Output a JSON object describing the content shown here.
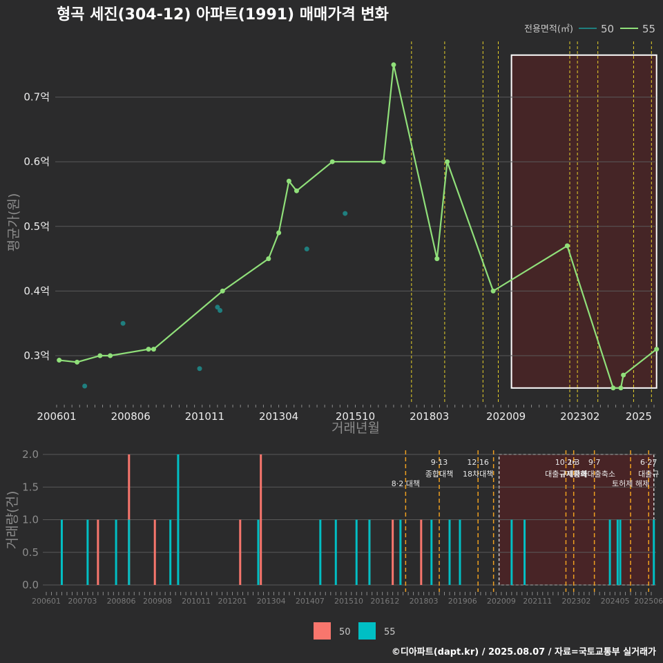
{
  "title": "형곡 세진(304-12) 아파트(1991) 매매가격 변화",
  "caption": "©디아파트(dapt.kr) / 2025.08.07 / 자료=국토교통부 실거래가",
  "colors": {
    "background": "#2b2b2c",
    "series50_top": "#1f7f7f",
    "series55_top": "#90e07a",
    "bar50": "#f8766d",
    "bar55": "#00bfc4",
    "policy_line": "#e8d22a",
    "policy_line_bottom": "#f0a020",
    "highlight_fill": "#4a2426"
  },
  "chart_data": [
    {
      "type": "line",
      "title": "형곡 세진(304-12) 아파트(1991) 매매가격 변화",
      "xlabel": "거래년월",
      "ylabel": "평균가(원)",
      "x_ticks": [
        "200601",
        "200806",
        "201011",
        "201304",
        "201510",
        "201803",
        "202009",
        "202302",
        "2025"
      ],
      "y_ticks": [
        "0.3억",
        "0.4억",
        "0.5억",
        "0.6억",
        "0.7억"
      ],
      "ylim": [
        0.235,
        0.78
      ],
      "legend_title": "전용면적(㎡)",
      "legend_position": "top-right",
      "series": [
        {
          "name": "50",
          "mode": "points",
          "points": [
            [
              "2006-12",
              0.253
            ],
            [
              "2008-03",
              0.35
            ],
            [
              "2010-09",
              0.28
            ],
            [
              "2011-04",
              0.375
            ],
            [
              "2011-05",
              0.37
            ],
            [
              "2014-03",
              0.465
            ],
            [
              "2015-06",
              0.52
            ]
          ]
        },
        {
          "name": "55",
          "mode": "line",
          "points": [
            [
              "2006-02",
              0.293
            ],
            [
              "2006-09",
              0.29
            ],
            [
              "2007-06",
              0.3
            ],
            [
              "2007-10",
              0.3
            ],
            [
              "2009-01",
              0.31
            ],
            [
              "2009-03",
              0.31
            ],
            [
              "2011-06",
              0.4
            ],
            [
              "2012-12",
              0.45
            ],
            [
              "2013-04",
              0.49
            ],
            [
              "2013-08",
              0.57
            ],
            [
              "2013-11",
              0.555
            ],
            [
              "2015-01",
              0.6
            ],
            [
              "2016-09",
              0.6
            ],
            [
              "2017-01",
              0.75
            ],
            [
              "2018-06",
              0.45
            ],
            [
              "2018-10",
              0.6
            ],
            [
              "2020-04",
              0.4
            ],
            [
              "2022-09",
              0.47
            ],
            [
              "2024-03",
              0.25
            ],
            [
              "2024-06",
              0.25
            ],
            [
              "2024-07",
              0.27
            ],
            [
              "2025-08",
              0.31
            ]
          ]
        }
      ]
    },
    {
      "type": "bar",
      "ylabel": "거래량(건)",
      "x_ticks": [
        "200601",
        "200703",
        "200806",
        "200908",
        "201011",
        "201201",
        "201304",
        "201407",
        "201510",
        "201612",
        "201803",
        "201906",
        "202009",
        "202111",
        "202302",
        "202405",
        "202506"
      ],
      "y_ticks": [
        "0.0",
        "0.5",
        "1.0",
        "1.5",
        "2.0"
      ],
      "ylim": [
        0,
        2
      ],
      "legend_position": "bottom",
      "series": [
        {
          "name": "50",
          "bars": [
            [
              "2007-09",
              1
            ],
            [
              "2008-09",
              2
            ],
            [
              "2009-07",
              1
            ],
            [
              "2012-04",
              1
            ],
            [
              "2012-12",
              2
            ],
            [
              "2016-06",
              1
            ],
            [
              "2017-03",
              1
            ],
            [
              "2018-02",
              1
            ]
          ]
        },
        {
          "name": "55",
          "bars": [
            [
              "2006-07",
              1
            ],
            [
              "2007-05",
              1
            ],
            [
              "2008-04",
              1
            ],
            [
              "2008-09",
              1
            ],
            [
              "2010-01",
              1
            ],
            [
              "2010-04",
              2
            ],
            [
              "2012-11",
              1
            ],
            [
              "2014-11",
              1
            ],
            [
              "2015-05",
              1
            ],
            [
              "2016-01",
              1
            ],
            [
              "2016-06",
              1
            ],
            [
              "2017-06",
              1
            ],
            [
              "2018-06",
              1
            ],
            [
              "2019-01",
              1
            ],
            [
              "2019-05",
              1
            ],
            [
              "2021-01",
              1
            ],
            [
              "2021-06",
              1
            ],
            [
              "2024-03",
              1
            ],
            [
              "2024-06",
              1
            ],
            [
              "2024-07",
              1
            ],
            [
              "2025-08",
              1
            ]
          ]
        }
      ],
      "policies": [
        {
          "date": "2017-08",
          "labels": [
            "8·2 대책"
          ]
        },
        {
          "date": "2018-09",
          "labels": [
            "9·13",
            "종합대책"
          ]
        },
        {
          "date": "2019-12",
          "labels": [
            "12·16",
            "18차대책"
          ]
        },
        {
          "date": "2020-06",
          "labels": []
        },
        {
          "date": "2022-10",
          "labels": [
            "10·26",
            "대출규제강화"
          ]
        },
        {
          "date": "2023-01",
          "labels": [
            "1·3",
            "규제완화"
          ]
        },
        {
          "date": "2023-09",
          "labels": [
            "9·7",
            "특례대출축소"
          ]
        },
        {
          "date": "2024-11",
          "labels": [
            "토허제 해제"
          ]
        },
        {
          "date": "2025-06",
          "labels": [
            "6·27",
            "대출규"
          ]
        }
      ]
    }
  ]
}
